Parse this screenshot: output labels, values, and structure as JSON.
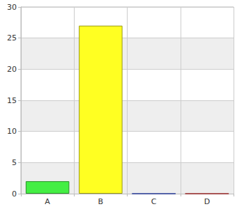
{
  "chart_data": {
    "type": "bar",
    "categories": [
      "A",
      "B",
      "C",
      "D"
    ],
    "values": [
      2,
      27,
      0,
      0
    ],
    "colors": [
      "#44ee44",
      "#ffff22",
      "#4466ff",
      "#ff4444"
    ],
    "ylim": [
      0,
      30
    ],
    "yticks": [
      0,
      5,
      10,
      15,
      20,
      25,
      30
    ],
    "grid": true
  }
}
